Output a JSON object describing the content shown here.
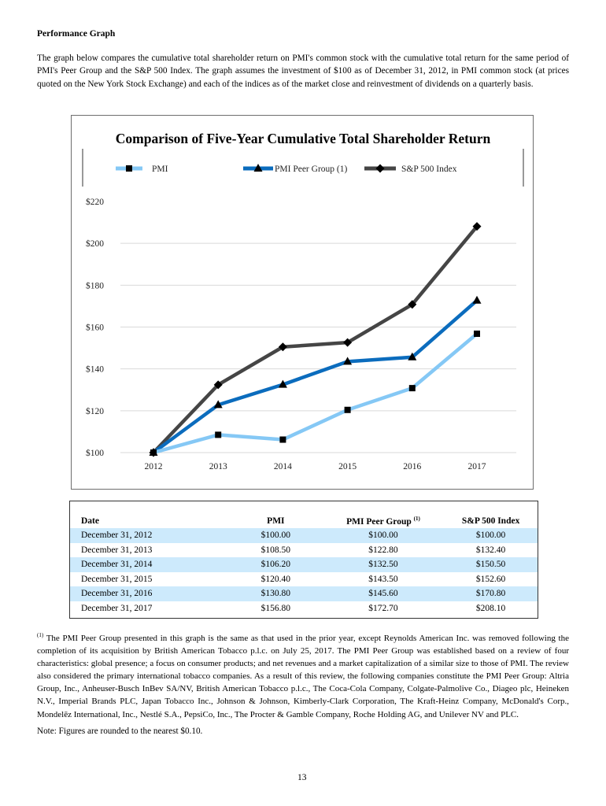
{
  "heading": "Performance Graph",
  "intro": "The graph below compares the cumulative total shareholder return on PMI's common stock with the cumulative total return for the same period of PMI's Peer Group and the S&P 500 Index. The graph assumes the investment of $100 as of December 31, 2012, in PMI common stock (at prices quoted on the New York Stock Exchange) and each of the indices as of the market close and reinvestment of dividends on a quarterly basis.",
  "chart_data": {
    "type": "line",
    "title": "Comparison of Five-Year Cumulative Total Shareholder Return",
    "xlabel": "",
    "ylabel": "",
    "categories": [
      "2012",
      "2013",
      "2014",
      "2015",
      "2016",
      "2017"
    ],
    "ylim": [
      100,
      220
    ],
    "yticks": [
      100,
      120,
      140,
      160,
      180,
      200,
      220
    ],
    "ytick_labels": [
      "$100",
      "$120",
      "$140",
      "$160",
      "$180",
      "$200",
      "$220"
    ],
    "grid": true,
    "legend_position": "top",
    "series": [
      {
        "name": "PMI",
        "values": [
          100.0,
          108.5,
          106.2,
          120.4,
          130.8,
          156.8
        ],
        "color": "#85c8f5",
        "marker": "square"
      },
      {
        "name": "PMI Peer Group (1)",
        "values": [
          100.0,
          122.8,
          132.5,
          143.5,
          145.6,
          172.7
        ],
        "color": "#0b6cbd",
        "marker": "triangle"
      },
      {
        "name": "S&P 500 Index",
        "values": [
          100.0,
          132.4,
          150.5,
          152.6,
          170.8,
          208.1
        ],
        "color": "#454545",
        "marker": "diamond"
      }
    ]
  },
  "table": {
    "headers": [
      "Date",
      "PMI",
      "PMI Peer Group",
      "S&P 500 Index"
    ],
    "peer_footnote_marker": "(1)",
    "rows": [
      [
        "December 31, 2012",
        "$100.00",
        "$100.00",
        "$100.00"
      ],
      [
        "December 31, 2013",
        "$108.50",
        "$122.80",
        "$132.40"
      ],
      [
        "December 31, 2014",
        "$106.20",
        "$132.50",
        "$150.50"
      ],
      [
        "December 31, 2015",
        "$120.40",
        "$143.50",
        "$152.60"
      ],
      [
        "December 31, 2016",
        "$130.80",
        "$145.60",
        "$170.80"
      ],
      [
        "December 31, 2017",
        "$156.80",
        "$172.70",
        "$208.10"
      ]
    ]
  },
  "footnote": {
    "marker": "(1)",
    "text": "The PMI Peer Group presented in this graph is the same as that used in the prior year, except Reynolds American Inc. was removed following the completion of its acquisition by British American Tobacco p.l.c. on July 25, 2017. The PMI Peer Group was established based on a review of four characteristics: global presence; a focus on consumer products; and net revenues and a market capitalization of a similar size to those of PMI.  The review also considered the primary international tobacco companies.  As a result of this review, the following companies constitute the PMI Peer Group: Altria Group, Inc., Anheuser-Busch InBev SA/NV, British American Tobacco p.l.c., The Coca-Cola Company, Colgate-Palmolive Co., Diageo plc, Heineken N.V., Imperial Brands PLC, Japan Tobacco Inc., Johnson & Johnson, Kimberly-Clark Corporation, The Kraft-Heinz Company, McDonald's Corp., Mondelēz International, Inc., Nestlé S.A., PepsiCo, Inc., The Procter & Gamble Company, Roche Holding AG, and Unilever NV and PLC."
  },
  "note": "Note: Figures are rounded to the nearest $0.10.",
  "page_number": "13"
}
